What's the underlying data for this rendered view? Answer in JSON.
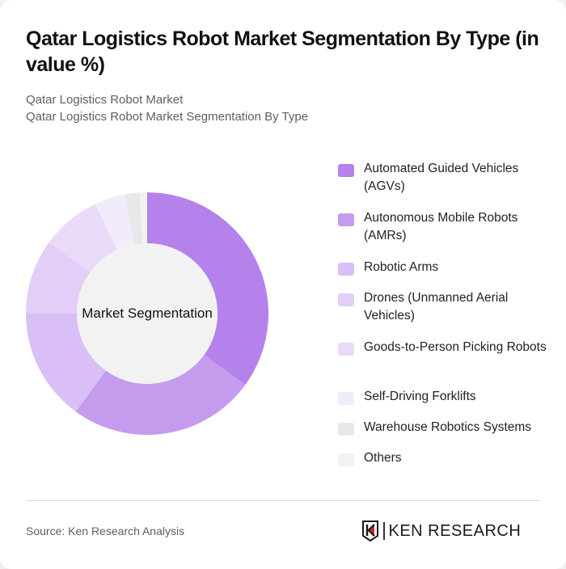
{
  "header": {
    "title": "Qatar Logistics Robot Market Segmentation By Type (in value %)",
    "subtitle_line1": "Qatar Logistics Robot Market",
    "subtitle_line2": "Qatar Logistics Robot Market Segmentation By Type"
  },
  "chart": {
    "center_label": "Market Segmentation"
  },
  "legend": {
    "items": [
      {
        "label": "Automated Guided Vehicles (AGVs)",
        "color": "#b482ea"
      },
      {
        "label": "Autonomous Mobile Robots (AMRs)",
        "color": "#c59bee"
      },
      {
        "label": "Robotic Arms",
        "color": "#d9bff5"
      },
      {
        "label": "Drones (Unmanned Aerial Vehicles)",
        "color": "#e2cef7"
      },
      {
        "label": "Goods-to-Person Picking Robots",
        "color": "#e9dafa"
      },
      {
        "label": "Self-Driving Forklifts",
        "color": "#f2ebfc"
      },
      {
        "label": "Warehouse Robotics Systems",
        "color": "#e8e8e8"
      },
      {
        "label": "Others",
        "color": "#f2f2f2"
      }
    ]
  },
  "footer": {
    "source": "Source: Ken Research Analysis",
    "logo_text": "KEN RESEARCH"
  },
  "chart_data": {
    "type": "pie",
    "title": "Qatar Logistics Robot Market Segmentation By Type (in value %)",
    "subtitle": "Qatar Logistics Robot Market Segmentation By Type",
    "center_label": "Market Segmentation",
    "categories": [
      "Automated Guided Vehicles (AGVs)",
      "Autonomous Mobile Robots (AMRs)",
      "Robotic Arms",
      "Drones (Unmanned Aerial Vehicles)",
      "Goods-to-Person Picking Robots",
      "Self-Driving Forklifts",
      "Warehouse Robotics Systems",
      "Others"
    ],
    "values": [
      35,
      25,
      15,
      10,
      8,
      4,
      2,
      1
    ],
    "colors": [
      "#b482ea",
      "#c59bee",
      "#d9bff5",
      "#e2cef7",
      "#e9dafa",
      "#f2ebfc",
      "#e8e8e8",
      "#f2f2f2"
    ],
    "donut": true,
    "legend_position": "right",
    "source": "Source: Ken Research Analysis"
  }
}
